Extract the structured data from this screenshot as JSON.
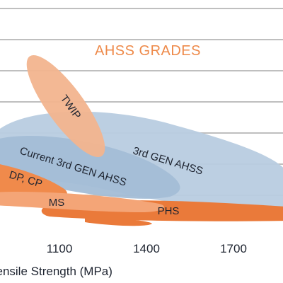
{
  "chart_data": {
    "type": "area",
    "title": "AHSS GRADES",
    "xlabel": "Tensile Strength (MPa)",
    "ylabel": "",
    "xticks": [
      1100,
      1400,
      1700
    ],
    "grid": true,
    "regions": [
      {
        "name": "3rd GEN AHSS",
        "color": "#b8cce0"
      },
      {
        "name": "Current 3rd GEN AHSS",
        "color": "#a3bdd6"
      },
      {
        "name": "TWIP",
        "color": "#f2b48e"
      },
      {
        "name": "DP, CP",
        "color": "#f08a4b"
      },
      {
        "name": "MS",
        "color": "#f4a577"
      },
      {
        "name": "PHS",
        "color": "#ea7a3a"
      }
    ],
    "colors": {
      "title": "#ee8a4a",
      "grid": "#bfbfbf",
      "text": "#1e2430"
    }
  }
}
